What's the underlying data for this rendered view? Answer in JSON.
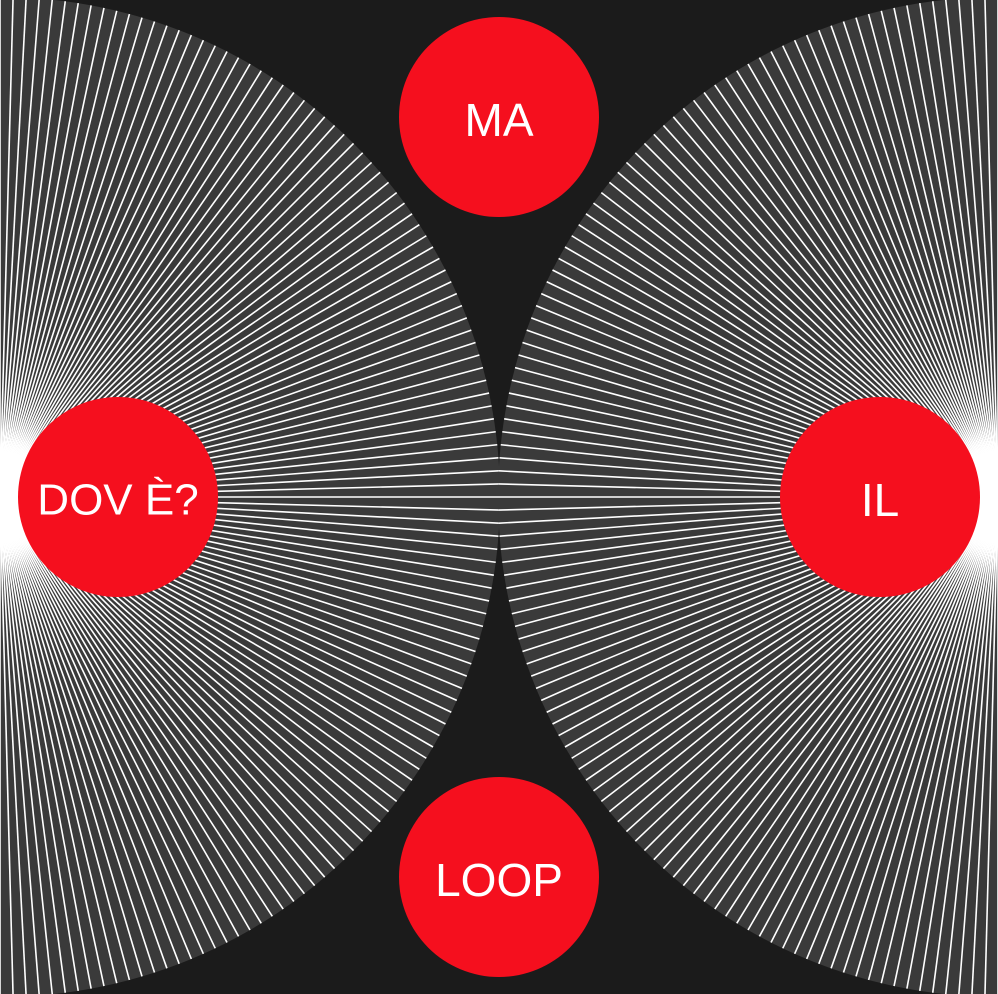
{
  "colors": {
    "background": "#1b1b1b",
    "fan_fill": "#3a3a3a",
    "rays": "#ffffff",
    "disc": "#f50f1e",
    "label": "#ffffff"
  },
  "labels": {
    "top": "MA",
    "left": "DOV È?",
    "right": "IL",
    "bottom": "LOOP"
  }
}
